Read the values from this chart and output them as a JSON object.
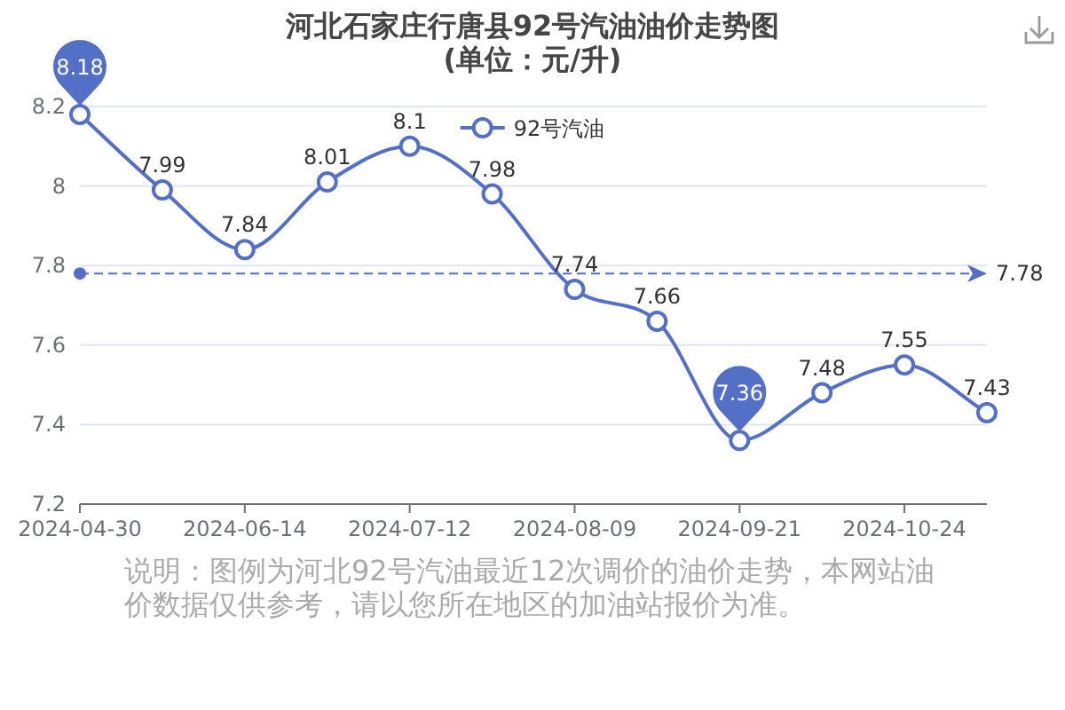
{
  "chart_data": {
    "type": "line",
    "title": "河北石家庄行唐县92号汽油油价走势图",
    "subtitle": "(单位：元/升)",
    "categories": [
      "2024-04-30",
      null,
      "2024-06-14",
      null,
      "2024-07-12",
      null,
      "2024-08-09",
      null,
      "2024-09-21",
      null,
      "2024-10-24",
      null
    ],
    "series": [
      {
        "name": "92号汽油",
        "color": "#5470c6",
        "values": [
          8.18,
          7.99,
          7.84,
          8.01,
          8.1,
          7.98,
          7.74,
          7.66,
          7.36,
          7.48,
          7.55,
          7.43
        ],
        "value_labels": [
          null,
          "7.99",
          "7.84",
          "8.01",
          "8.1",
          "7.98",
          "7.74",
          "7.66",
          null,
          "7.48",
          "7.55",
          "7.43"
        ]
      }
    ],
    "ylim": [
      7.2,
      8.2
    ],
    "yticks": [
      7.2,
      7.4,
      7.6,
      7.8,
      8,
      8.2
    ],
    "grid": "y",
    "legend": "top",
    "marker": "circle",
    "line_style": "solid",
    "ref_lines": [
      {
        "axis": "y",
        "value": 7.78,
        "label": "7.78",
        "color": "#5470c6",
        "line_style": "dashed"
      }
    ],
    "annotations": [
      {
        "text": "8.18",
        "x": "2024-04-30",
        "y": 8.18
      },
      {
        "text": "7.36",
        "x": "2024-09-21",
        "y": 7.36
      },
      "说明：图例为河北92号汽油最近12次调价的油价走势，本网站油价数据仅供参考，请以您所在地区的加油站报价为准。"
    ]
  }
}
